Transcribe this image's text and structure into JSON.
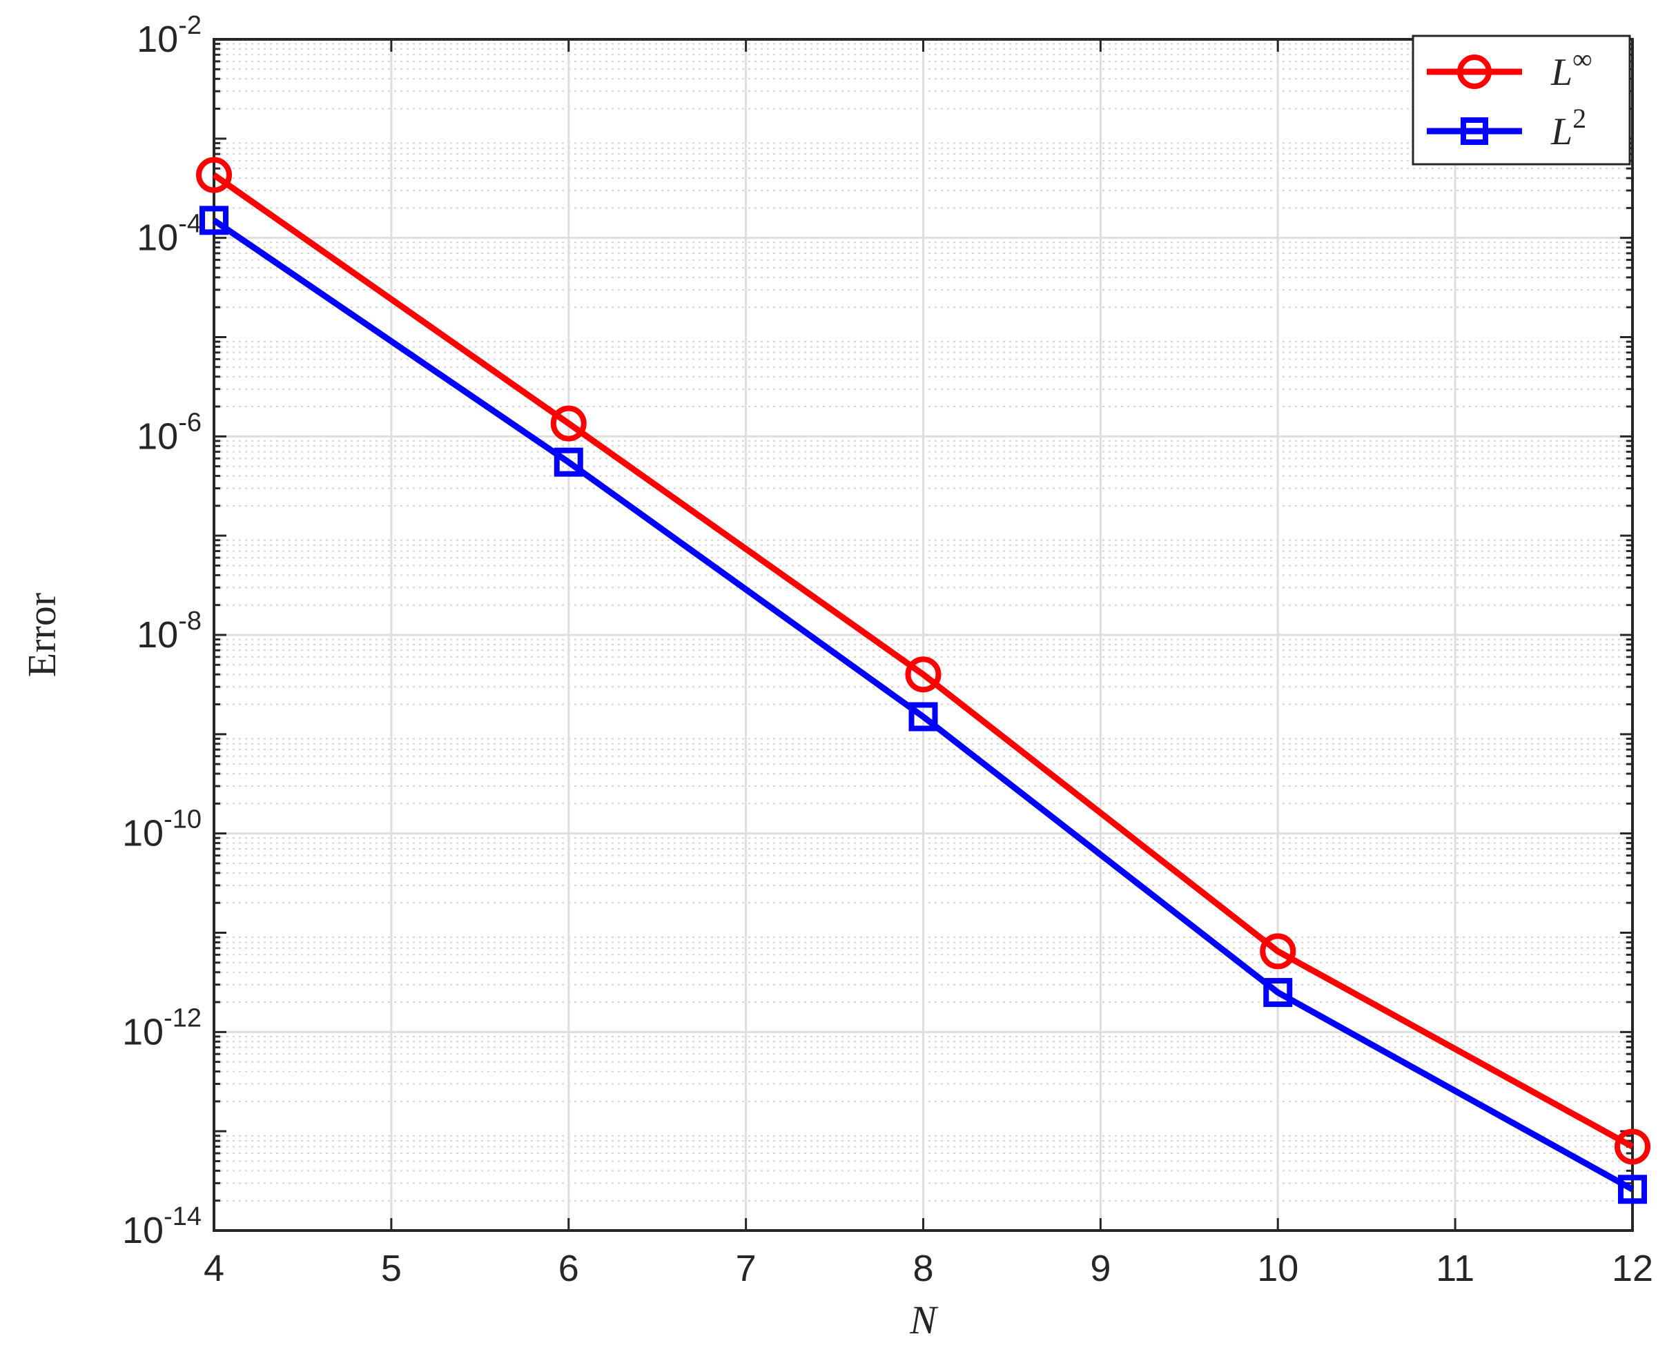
{
  "chart_data": {
    "type": "line",
    "xlabel": "N",
    "ylabel": "Error",
    "x_scale": "linear",
    "y_scale": "log",
    "xlim": [
      4,
      12
    ],
    "ylim": [
      1e-14,
      0.01
    ],
    "x_ticks": [
      4,
      5,
      6,
      7,
      8,
      9,
      10,
      11,
      12
    ],
    "x_tick_labels": [
      "4",
      "5",
      "6",
      "7",
      "8",
      "9",
      "10",
      "11",
      "12"
    ],
    "y_ticks": [
      {
        "value": 1e-14,
        "base": "10",
        "exp": "-14"
      },
      {
        "value": 1e-12,
        "base": "10",
        "exp": "-12"
      },
      {
        "value": 1e-10,
        "base": "10",
        "exp": "-10"
      },
      {
        "value": 1e-08,
        "base": "10",
        "exp": "-8"
      },
      {
        "value": 1e-06,
        "base": "10",
        "exp": "-6"
      },
      {
        "value": 0.0001,
        "base": "10",
        "exp": "-4"
      },
      {
        "value": 0.01,
        "base": "10",
        "exp": "-2"
      }
    ],
    "grid": "major and minor",
    "legend_position": "top-right",
    "x": [
      4,
      6,
      8,
      10,
      12
    ],
    "series": [
      {
        "name_base": "L",
        "name_sup": "∞",
        "color": "#ff0000",
        "marker": "circle",
        "values": [
          0.00043,
          1.35e-06,
          4e-09,
          6.5e-12,
          7e-14
        ]
      },
      {
        "name_base": "L",
        "name_sup": "2",
        "color": "#0000ff",
        "marker": "square",
        "values": [
          0.00015,
          5.5e-07,
          1.5e-09,
          2.5e-12,
          2.6e-14
        ]
      }
    ]
  }
}
